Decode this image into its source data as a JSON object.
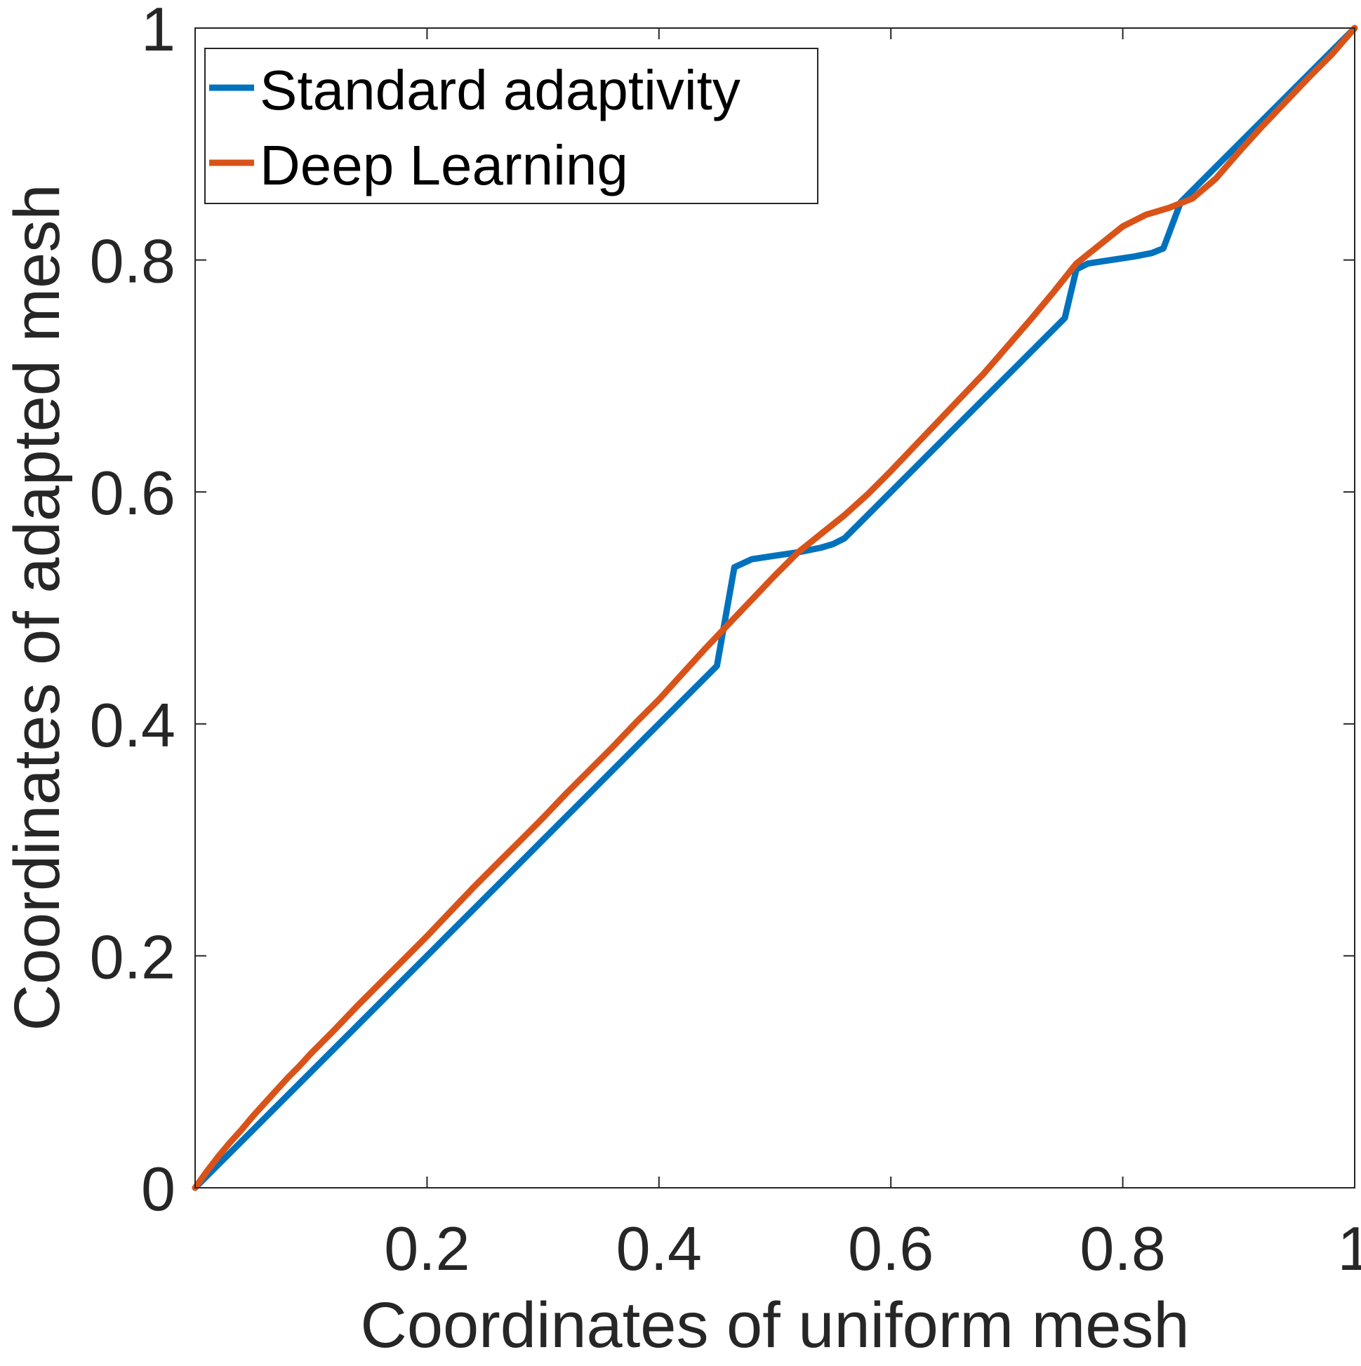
{
  "chart_data": {
    "type": "line",
    "xlabel": "Coordinates of uniform mesh",
    "ylabel": "Coordinates of adapted mesh",
    "xlim": [
      0,
      1
    ],
    "ylim": [
      0,
      1
    ],
    "x_ticks": [
      0.2,
      0.4,
      0.6,
      0.8,
      1
    ],
    "x_tick_labels": [
      "0.2",
      "0.4",
      "0.6",
      "0.8",
      "1"
    ],
    "y_ticks": [
      0,
      0.2,
      0.4,
      0.6,
      0.8,
      1
    ],
    "y_tick_labels": [
      "0",
      "0.2",
      "0.4",
      "0.6",
      "0.8",
      "1"
    ],
    "grid": false,
    "legend_position": "top-left",
    "series": [
      {
        "name": "Standard adaptivity",
        "color": "#0072BD",
        "x": [
          0,
          0.05,
          0.1,
          0.2,
          0.3,
          0.4,
          0.45,
          0.465,
          0.48,
          0.5,
          0.52,
          0.54,
          0.55,
          0.56,
          0.6,
          0.65,
          0.7,
          0.75,
          0.76,
          0.77,
          0.79,
          0.81,
          0.825,
          0.835,
          0.85,
          0.9,
          0.95,
          1
        ],
        "y": [
          0,
          0.05,
          0.1,
          0.2,
          0.3,
          0.4,
          0.45,
          0.535,
          0.542,
          0.545,
          0.548,
          0.552,
          0.555,
          0.56,
          0.6,
          0.65,
          0.7,
          0.75,
          0.792,
          0.797,
          0.8,
          0.803,
          0.806,
          0.81,
          0.85,
          0.9,
          0.95,
          1
        ]
      },
      {
        "name": "Deep Learning",
        "color": "#D95319",
        "x": [
          0,
          0.01,
          0.02,
          0.03,
          0.04,
          0.05,
          0.06,
          0.07,
          0.08,
          0.09,
          0.1,
          0.12,
          0.14,
          0.16,
          0.18,
          0.2,
          0.22,
          0.24,
          0.26,
          0.28,
          0.3,
          0.32,
          0.34,
          0.36,
          0.38,
          0.4,
          0.42,
          0.44,
          0.46,
          0.48,
          0.5,
          0.52,
          0.54,
          0.56,
          0.58,
          0.6,
          0.62,
          0.64,
          0.66,
          0.68,
          0.7,
          0.72,
          0.74,
          0.76,
          0.78,
          0.8,
          0.82,
          0.84,
          0.86,
          0.88,
          0.9,
          0.92,
          0.94,
          0.96,
          0.98,
          1
        ],
        "y": [
          0,
          0.014,
          0.027,
          0.039,
          0.05,
          0.062,
          0.073,
          0.084,
          0.095,
          0.105,
          0.116,
          0.136,
          0.157,
          0.177,
          0.197,
          0.217,
          0.238,
          0.259,
          0.279,
          0.299,
          0.319,
          0.34,
          0.36,
          0.38,
          0.401,
          0.421,
          0.443,
          0.465,
          0.486,
          0.507,
          0.528,
          0.548,
          0.564,
          0.58,
          0.598,
          0.618,
          0.639,
          0.66,
          0.681,
          0.702,
          0.725,
          0.748,
          0.772,
          0.797,
          0.813,
          0.829,
          0.839,
          0.845,
          0.853,
          0.87,
          0.893,
          0.915,
          0.936,
          0.957,
          0.977,
          1
        ]
      }
    ]
  }
}
